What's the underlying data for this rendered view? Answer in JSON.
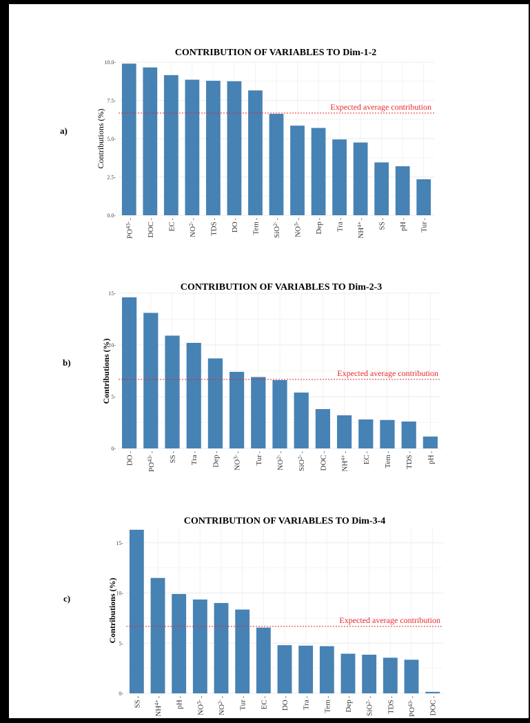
{
  "expected_label": "Expected average contribution",
  "chart_data": [
    {
      "type": "bar",
      "panel": "a)",
      "title": "CONTRIBUTION OF VARIABLES TO Dim-1-2",
      "ylabel": "Contributions (%)",
      "ylim": [
        0,
        10
      ],
      "yticks": [
        "0.0",
        "2.5",
        "5.0",
        "7.5",
        "10.0"
      ],
      "ytick_values": [
        0,
        2.5,
        5,
        7.5,
        10
      ],
      "expected_average": 6.67,
      "bar_color": "#4682b4",
      "line_color": "#e8262b",
      "grid": true,
      "categories": [
        "PO43-",
        "DOC",
        "EC",
        "NO2-",
        "TDS",
        "DO",
        "Tem",
        "SiO2-",
        "NO3-",
        "Dep",
        "Tra",
        "NH4+",
        "SS",
        "pH",
        "Tur"
      ],
      "values": [
        9.9,
        9.65,
        9.15,
        8.85,
        8.78,
        8.75,
        8.15,
        6.62,
        5.85,
        5.7,
        4.95,
        4.75,
        3.45,
        3.2,
        2.35
      ]
    },
    {
      "type": "bar",
      "panel": "b)",
      "title": "CONTRIBUTION OF VARIABLES TO Dim-2-3",
      "ylabel": "Contributions (%)",
      "ylim": [
        0,
        15
      ],
      "yticks": [
        "0",
        "5",
        "10",
        "15"
      ],
      "ytick_values": [
        0,
        5,
        10,
        15
      ],
      "expected_average": 6.67,
      "bar_color": "#4682b4",
      "line_color": "#e8262b",
      "grid": true,
      "categories": [
        "DO",
        "PO43-",
        "SS",
        "Tra",
        "Dep",
        "NO3-",
        "Tur",
        "NO2-",
        "SiO2-",
        "DOC",
        "NH4+",
        "EC",
        "Tem",
        "TDS",
        "pH"
      ],
      "values": [
        14.6,
        13.1,
        10.9,
        10.2,
        8.7,
        7.4,
        6.9,
        6.6,
        5.4,
        3.8,
        3.2,
        2.8,
        2.75,
        2.6,
        1.15
      ]
    },
    {
      "type": "bar",
      "panel": "c)",
      "title": "CONTRIBUTION OF VARIABLES TO Dim-3-4",
      "ylabel": "Contributions (%)",
      "ylim": [
        0,
        16.5
      ],
      "yticks": [
        "0",
        "5",
        "10",
        "15"
      ],
      "ytick_values": [
        0,
        5,
        10,
        15
      ],
      "expected_average": 6.67,
      "bar_color": "#4682b4",
      "line_color": "#e8262b",
      "grid": true,
      "categories": [
        "SS",
        "NH4+",
        "pH",
        "NO3-",
        "NO2-",
        "Tur",
        "EC",
        "DO",
        "Tra",
        "Tem",
        "Dep",
        "SiO2-",
        "TDS",
        "PO43-",
        "DOC"
      ],
      "values": [
        16.3,
        11.5,
        9.9,
        9.35,
        9.0,
        8.35,
        6.55,
        4.8,
        4.75,
        4.7,
        3.95,
        3.85,
        3.55,
        3.35,
        0.15
      ]
    }
  ]
}
